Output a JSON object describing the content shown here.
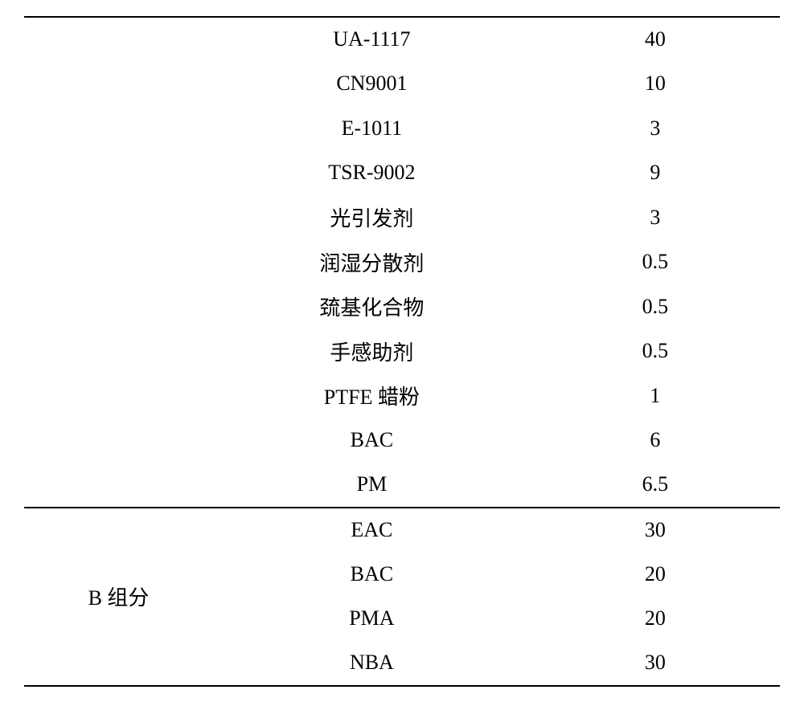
{
  "table": {
    "text_color": "#000000",
    "border_color": "#000000",
    "background_color": "#ffffff",
    "font_size": 26,
    "row_height": 55.5,
    "section_a": {
      "rows": [
        {
          "name": "UA-1117",
          "value": "40"
        },
        {
          "name": "CN9001",
          "value": "10"
        },
        {
          "name": "E-1011",
          "value": "3"
        },
        {
          "name": "TSR-9002",
          "value": "9"
        },
        {
          "name": "光引发剂",
          "value": "3"
        },
        {
          "name": "润湿分散剂",
          "value": "0.5"
        },
        {
          "name": "巯基化合物",
          "value": "0.5"
        },
        {
          "name": "手感助剂",
          "value": "0.5"
        },
        {
          "name": "PTFE 蜡粉",
          "value": "1"
        },
        {
          "name": "BAC",
          "value": "6"
        },
        {
          "name": "PM",
          "value": "6.5"
        }
      ]
    },
    "section_b": {
      "group_label": "B 组分",
      "rows": [
        {
          "name": "EAC",
          "value": "30"
        },
        {
          "name": "BAC",
          "value": "20"
        },
        {
          "name": "PMA",
          "value": "20"
        },
        {
          "name": "NBA",
          "value": "30"
        }
      ]
    }
  }
}
